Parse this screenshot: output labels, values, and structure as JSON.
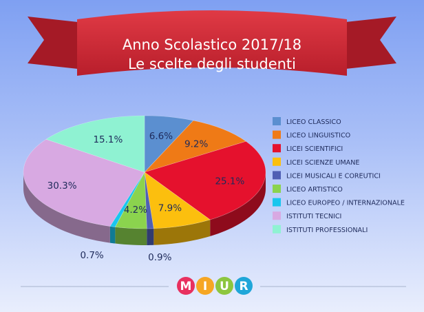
{
  "chart_data": {
    "type": "pie",
    "title": "Anno Scolastico 2017/18",
    "subtitle": "Le scelte degli studenti",
    "legend_position": "right",
    "categories": [
      "LICEO CLASSICO",
      "LICEO LINGUISTICO",
      "LICEI SCIENTIFICI",
      "LICEI SCIENZE UMANE",
      "LICEI MUSICALI E COREUTICI",
      "LICEO ARTISTICO",
      "LICEO EUROPEO / INTERNAZIONALE",
      "ISTITUTI TECNICI",
      "ISTITUTI PROFESSIONALI"
    ],
    "values": [
      6.6,
      9.2,
      25.1,
      7.9,
      0.9,
      4.2,
      0.7,
      30.3,
      15.1
    ],
    "data_labels": [
      "6.6%",
      "9.2%",
      "25.1%",
      "7.9%",
      "0.9%",
      "4.2%",
      "0.7%",
      "30.3%",
      "15.1%"
    ],
    "colors": [
      "#5b8fd0",
      "#ef7a16",
      "#e5112d",
      "#fcbf0e",
      "#4f5fb4",
      "#8bd34e",
      "#19c6ee",
      "#d8a9e2",
      "#8ff2d2"
    ]
  },
  "logo": {
    "letters": [
      "M",
      "I",
      "U",
      "R"
    ],
    "colors": [
      "#e8305f",
      "#f6a623",
      "#8dc63f",
      "#1fa6d9"
    ]
  }
}
